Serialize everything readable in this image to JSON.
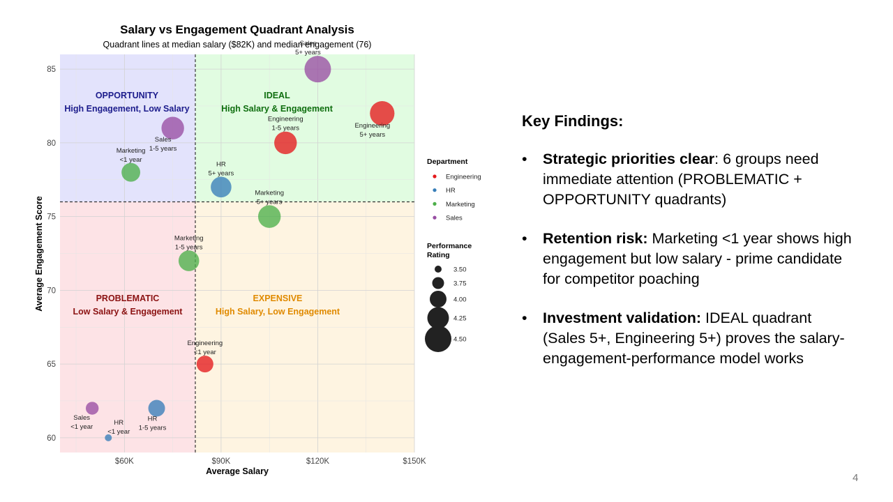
{
  "slide": {
    "page_number": "4",
    "findings_title": "Key Findings:",
    "findings": [
      {
        "bold": "Strategic priorities clear",
        "text": ": 6 groups need immediate attention (PROBLEMATIC + OPPORTUNITY quadrants)"
      },
      {
        "bold": "Retention risk:",
        "text": " Marketing <1 year shows high engagement but low salary - prime candidate for competitor poaching"
      },
      {
        "bold": "Investment validation:",
        "text": " IDEAL quadrant (Sales 5+, Engineering 5+) proves the salary-engagement-performance model works"
      }
    ]
  },
  "chart_data": {
    "type": "scatter",
    "title": "Salary vs Engagement Quadrant Analysis",
    "subtitle": "Quadrant lines at median salary ($82K) and median engagement (76)",
    "xlabel": "Average Salary",
    "ylabel": "Average Engagement Score",
    "xlim": [
      40000,
      150000
    ],
    "ylim": [
      59,
      86
    ],
    "x_ticks": [
      60000,
      90000,
      120000,
      150000
    ],
    "x_tick_labels": [
      "$60K",
      "$90K",
      "$120K",
      "$150K"
    ],
    "y_ticks": [
      60,
      65,
      70,
      75,
      80,
      85
    ],
    "y_tick_labels": [
      "60",
      "65",
      "70",
      "75",
      "80",
      "85"
    ],
    "median_salary": 82000,
    "median_engagement": 76,
    "grid": true,
    "quadrants": [
      {
        "id": "opportunity",
        "title": "OPPORTUNITY",
        "subtitle": "High Engagement, Low Salary",
        "color": "#1c1c8c",
        "fill": "#e3e3fc"
      },
      {
        "id": "ideal",
        "title": "IDEAL",
        "subtitle": "High Salary & Engagement",
        "color": "#0f6e0f",
        "fill": "#e1fce1"
      },
      {
        "id": "problematic",
        "title": "PROBLEMATIC",
        "subtitle": "Low Salary & Engagement",
        "color": "#8b1212",
        "fill": "#fde3e6"
      },
      {
        "id": "expensive",
        "title": "EXPENSIVE",
        "subtitle": "High Salary, Low Engagement",
        "color": "#e08a00",
        "fill": "#fef4e1"
      }
    ],
    "department_colors": {
      "Engineering": "#e41a1c",
      "HR": "#377eb8",
      "Marketing": "#4daf4a",
      "Sales": "#984ea3"
    },
    "points": [
      {
        "department": "Sales",
        "tenure": "5+ years",
        "x": 120000,
        "y": 85,
        "performance": 4.5
      },
      {
        "department": "Engineering",
        "tenure": "5+ years",
        "x": 140000,
        "y": 82,
        "performance": 4.4
      },
      {
        "department": "Sales",
        "tenure": "1-5 years",
        "x": 75000,
        "y": 81,
        "performance": 4.3
      },
      {
        "department": "Engineering",
        "tenure": "1-5 years",
        "x": 110000,
        "y": 80,
        "performance": 4.3
      },
      {
        "department": "Marketing",
        "tenure": "<1 year",
        "x": 62000,
        "y": 78,
        "performance": 4.1
      },
      {
        "department": "HR",
        "tenure": "5+ years",
        "x": 90000,
        "y": 77,
        "performance": 4.2
      },
      {
        "department": "Marketing",
        "tenure": "5+ years",
        "x": 105000,
        "y": 75,
        "performance": 4.3
      },
      {
        "department": "Marketing",
        "tenure": "1-5 years",
        "x": 80000,
        "y": 72,
        "performance": 4.2
      },
      {
        "department": "Engineering",
        "tenure": "<1 year",
        "x": 85000,
        "y": 65,
        "performance": 4.0
      },
      {
        "department": "Sales",
        "tenure": "<1 year",
        "x": 50000,
        "y": 62,
        "performance": 3.8
      },
      {
        "department": "HR",
        "tenure": "1-5 years",
        "x": 70000,
        "y": 62,
        "performance": 4.0
      },
      {
        "department": "HR",
        "tenure": "<1 year",
        "x": 55000,
        "y": 60,
        "performance": 3.5
      }
    ],
    "legend": {
      "position": "right",
      "department_title": "Department",
      "departments": [
        "Engineering",
        "HR",
        "Marketing",
        "Sales"
      ],
      "size_title_lines": [
        "Performance",
        "Rating"
      ],
      "size_values": [
        3.5,
        3.75,
        4.0,
        4.25,
        4.5
      ],
      "size_labels": [
        "3.50",
        "3.75",
        "4.00",
        "4.25",
        "4.50"
      ]
    }
  }
}
